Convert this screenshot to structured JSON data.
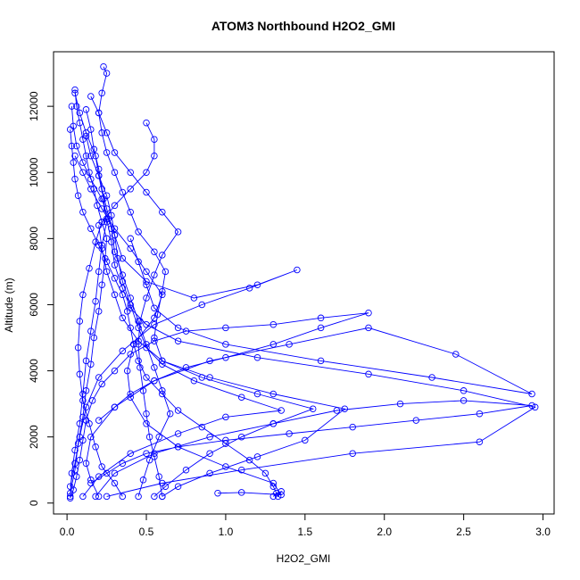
{
  "chart_data": {
    "type": "scatter",
    "title": "ATOM3 Northbound H2O2_GMI",
    "xlabel": "H2O2_GMI",
    "ylabel": "Altitude (m)",
    "xlim": [
      -0.085,
      3.07
    ],
    "ylim": [
      -330,
      13650
    ],
    "x_ticks": [
      0.0,
      0.5,
      1.0,
      1.5,
      2.0,
      2.5,
      3.0
    ],
    "x_tick_labels": [
      "0.0",
      "0.5",
      "1.0",
      "1.5",
      "2.0",
      "2.5",
      "3.0"
    ],
    "y_ticks": [
      0,
      2000,
      4000,
      6000,
      8000,
      10000,
      12000
    ],
    "y_tick_labels": [
      "0",
      "2000",
      "4000",
      "6000",
      "8000",
      "10000",
      "12000"
    ],
    "grid": false,
    "legend": "none",
    "marker": "open-circle",
    "connect_points": true,
    "color": "#0000ff",
    "series": [
      {
        "values": [
          [
            0.02,
            200
          ],
          [
            0.03,
            900
          ],
          [
            0.05,
            1600
          ],
          [
            0.08,
            2400
          ],
          [
            0.1,
            3300
          ],
          [
            0.12,
            4300
          ],
          [
            0.15,
            5200
          ],
          [
            0.18,
            6100
          ],
          [
            0.2,
            7000
          ],
          [
            0.22,
            7800
          ],
          [
            0.25,
            8500
          ],
          [
            0.23,
            9200
          ],
          [
            0.2,
            9900
          ],
          [
            0.18,
            10500
          ],
          [
            0.12,
            11200
          ],
          [
            0.08,
            11800
          ],
          [
            0.05,
            12400
          ]
        ]
      },
      {
        "values": [
          [
            0.45,
            200
          ],
          [
            0.48,
            700
          ],
          [
            0.52,
            1300
          ],
          [
            0.58,
            2000
          ],
          [
            0.65,
            2700
          ],
          [
            0.6,
            3400
          ],
          [
            0.55,
            4100
          ],
          [
            0.5,
            4800
          ],
          [
            0.45,
            5500
          ],
          [
            0.4,
            6200
          ],
          [
            0.35,
            6900
          ],
          [
            0.3,
            7600
          ],
          [
            0.28,
            8300
          ],
          [
            0.25,
            8900
          ],
          [
            0.22,
            9500
          ],
          [
            0.2,
            10100
          ],
          [
            0.17,
            10700
          ],
          [
            0.15,
            11300
          ],
          [
            0.12,
            11900
          ]
        ]
      },
      {
        "values": [
          [
            0.6,
            200
          ],
          [
            0.7,
            500
          ],
          [
            0.9,
            900
          ],
          [
            1.2,
            1400
          ],
          [
            1.5,
            1900
          ],
          [
            1.75,
            2850
          ],
          [
            1.3,
            3300
          ],
          [
            0.9,
            3800
          ],
          [
            0.6,
            4300
          ],
          [
            0.45,
            4900
          ],
          [
            0.35,
            5600
          ],
          [
            0.3,
            6300
          ],
          [
            0.25,
            7000
          ],
          [
            0.22,
            7700
          ],
          [
            0.2,
            8400
          ]
        ]
      },
      {
        "values": [
          [
            0.25,
            200
          ],
          [
            0.6,
            600
          ],
          [
            1.1,
            1000
          ],
          [
            1.8,
            1500
          ],
          [
            2.6,
            1850
          ],
          [
            2.95,
            2900
          ],
          [
            2.5,
            3400
          ],
          [
            1.9,
            3900
          ],
          [
            1.2,
            4400
          ],
          [
            0.7,
            4900
          ],
          [
            0.5,
            5400
          ],
          [
            0.4,
            5900
          ],
          [
            0.35,
            6500
          ],
          [
            0.3,
            7200
          ],
          [
            0.28,
            7900
          ],
          [
            0.25,
            8600
          ]
        ]
      },
      {
        "values": [
          [
            0.95,
            300
          ],
          [
            1.1,
            320
          ],
          [
            1.35,
            250
          ],
          [
            1.3,
            600
          ],
          [
            1.0,
            1100
          ],
          [
            0.7,
            1700
          ],
          [
            0.5,
            2400
          ],
          [
            0.4,
            3200
          ],
          [
            0.38,
            4000
          ],
          [
            0.42,
            4800
          ],
          [
            0.55,
            5600
          ],
          [
            0.6,
            6300
          ],
          [
            0.5,
            7000
          ],
          [
            0.4,
            7700
          ],
          [
            0.3,
            8300
          ],
          [
            0.22,
            8900
          ],
          [
            0.15,
            9500
          ],
          [
            0.1,
            10000
          ],
          [
            0.05,
            10500
          ]
        ]
      },
      {
        "values": [
          [
            0.2,
            200
          ],
          [
            0.15,
            700
          ],
          [
            0.12,
            1200
          ],
          [
            0.15,
            2000
          ],
          [
            0.3,
            2900
          ],
          [
            0.55,
            3700
          ],
          [
            0.9,
            4300
          ],
          [
            1.4,
            4800
          ],
          [
            1.9,
            5300
          ],
          [
            2.45,
            4500
          ],
          [
            2.93,
            3300
          ],
          [
            2.3,
            3800
          ],
          [
            1.6,
            4300
          ],
          [
            1.0,
            4800
          ],
          [
            0.7,
            5300
          ],
          [
            0.55,
            5900
          ],
          [
            0.5,
            6600
          ],
          [
            0.45,
            7300
          ],
          [
            0.4,
            8000
          ]
        ]
      },
      {
        "values": [
          [
            0.55,
            200
          ],
          [
            0.62,
            500
          ],
          [
            0.75,
            1000
          ],
          [
            0.9,
            1500
          ],
          [
            1.1,
            2000
          ],
          [
            1.3,
            2400
          ],
          [
            1.55,
            2850
          ],
          [
            1.2,
            3300
          ],
          [
            0.85,
            3800
          ],
          [
            0.6,
            4300
          ],
          [
            0.55,
            5000
          ],
          [
            0.57,
            5700
          ],
          [
            0.6,
            6400
          ],
          [
            0.62,
            7000
          ],
          [
            0.55,
            7600
          ],
          [
            0.45,
            8200
          ],
          [
            0.4,
            8800
          ],
          [
            0.35,
            9400
          ],
          [
            0.3,
            10000
          ],
          [
            0.25,
            10600
          ],
          [
            0.22,
            11200
          ],
          [
            0.2,
            11800
          ],
          [
            0.22,
            12400
          ],
          [
            0.25,
            13000
          ],
          [
            0.23,
            13200
          ]
        ]
      },
      {
        "values": [
          [
            0.02,
            500
          ],
          [
            0.05,
            1200
          ],
          [
            0.08,
            2000
          ],
          [
            0.12,
            2900
          ],
          [
            0.2,
            3800
          ],
          [
            0.35,
            4600
          ],
          [
            0.55,
            5400
          ],
          [
            0.85,
            6000
          ],
          [
            1.15,
            6500
          ],
          [
            1.45,
            7050
          ],
          [
            1.2,
            6600
          ],
          [
            0.8,
            6200
          ],
          [
            0.5,
            6700
          ],
          [
            0.35,
            7400
          ],
          [
            0.3,
            8100
          ],
          [
            0.26,
            8600
          ],
          [
            0.22,
            9200
          ],
          [
            0.15,
            9800
          ],
          [
            0.1,
            10300
          ],
          [
            0.06,
            10800
          ],
          [
            0.04,
            11400
          ],
          [
            0.03,
            12000
          ]
        ]
      },
      {
        "values": [
          [
            0.1,
            200
          ],
          [
            0.2,
            800
          ],
          [
            0.4,
            1500
          ],
          [
            0.7,
            2100
          ],
          [
            1.0,
            2600
          ],
          [
            1.35,
            2800
          ],
          [
            1.1,
            3200
          ],
          [
            0.8,
            3700
          ],
          [
            0.6,
            4200
          ],
          [
            0.5,
            4700
          ],
          [
            0.45,
            5300
          ],
          [
            0.4,
            6000
          ],
          [
            0.35,
            6700
          ],
          [
            0.32,
            7400
          ],
          [
            0.3,
            8100
          ],
          [
            0.28,
            8700
          ],
          [
            0.25,
            9300
          ],
          [
            0.2,
            9900
          ],
          [
            0.15,
            10500
          ],
          [
            0.12,
            11100
          ]
        ]
      },
      {
        "values": [
          [
            0.35,
            200
          ],
          [
            0.3,
            600
          ],
          [
            0.22,
            1100
          ],
          [
            0.18,
            1700
          ],
          [
            0.14,
            2400
          ],
          [
            0.1,
            3100
          ],
          [
            0.08,
            3900
          ],
          [
            0.07,
            4700
          ],
          [
            0.08,
            5500
          ],
          [
            0.1,
            6300
          ],
          [
            0.14,
            7100
          ],
          [
            0.18,
            7900
          ],
          [
            0.22,
            8500
          ],
          [
            0.3,
            9000
          ],
          [
            0.4,
            9500
          ],
          [
            0.5,
            10000
          ],
          [
            0.55,
            10500
          ],
          [
            0.55,
            11000
          ],
          [
            0.5,
            11500
          ]
        ]
      },
      {
        "values": [
          [
            0.6,
            200
          ],
          [
            0.58,
            800
          ],
          [
            0.55,
            1400
          ],
          [
            0.52,
            2000
          ],
          [
            0.5,
            2700
          ],
          [
            0.48,
            3400
          ],
          [
            0.46,
            4100
          ],
          [
            0.45,
            4800
          ],
          [
            0.46,
            5500
          ],
          [
            0.5,
            6200
          ],
          [
            0.55,
            6900
          ],
          [
            0.6,
            7500
          ],
          [
            0.7,
            8200
          ],
          [
            0.6,
            8800
          ],
          [
            0.5,
            9400
          ],
          [
            0.4,
            10000
          ],
          [
            0.3,
            10600
          ],
          [
            0.25,
            11200
          ],
          [
            0.2,
            11800
          ],
          [
            0.15,
            12300
          ]
        ]
      },
      {
        "values": [
          [
            0.02,
            150
          ],
          [
            0.04,
            400
          ],
          [
            0.06,
            800
          ],
          [
            0.08,
            1300
          ],
          [
            0.1,
            1900
          ],
          [
            0.12,
            2500
          ],
          [
            0.16,
            3100
          ],
          [
            0.22,
            3600
          ],
          [
            0.3,
            4000
          ],
          [
            0.4,
            4500
          ],
          [
            0.55,
            4900
          ],
          [
            0.75,
            5200
          ],
          [
            1.0,
            5300
          ],
          [
            1.3,
            5400
          ],
          [
            1.6,
            5600
          ],
          [
            1.9,
            5750
          ],
          [
            1.6,
            5300
          ],
          [
            1.3,
            4800
          ],
          [
            1.0,
            4400
          ],
          [
            0.75,
            4100
          ],
          [
            0.55,
            3700
          ],
          [
            0.4,
            3300
          ],
          [
            0.3,
            2900
          ],
          [
            0.2,
            2500
          ]
        ]
      },
      {
        "values": [
          [
            1.3,
            200
          ],
          [
            1.32,
            300
          ],
          [
            1.35,
            350
          ],
          [
            1.33,
            200
          ],
          [
            1.3,
            500
          ],
          [
            1.25,
            900
          ],
          [
            1.15,
            1300
          ],
          [
            1.0,
            1800
          ],
          [
            0.85,
            2300
          ],
          [
            0.7,
            2800
          ],
          [
            0.6,
            3300
          ],
          [
            0.5,
            3800
          ],
          [
            0.45,
            4300
          ],
          [
            0.42,
            4800
          ],
          [
            0.4,
            5300
          ],
          [
            0.38,
            5800
          ],
          [
            0.35,
            6300
          ],
          [
            0.3,
            6800
          ],
          [
            0.25,
            7300
          ],
          [
            0.2,
            7800
          ],
          [
            0.15,
            8300
          ],
          [
            0.1,
            8800
          ],
          [
            0.07,
            9300
          ],
          [
            0.05,
            9800
          ],
          [
            0.04,
            10300
          ],
          [
            0.03,
            10800
          ],
          [
            0.02,
            11300
          ]
        ]
      },
      {
        "values": [
          [
            0.18,
            200
          ],
          [
            0.3,
            900
          ],
          [
            0.55,
            1500
          ],
          [
            0.9,
            2000
          ],
          [
            1.3,
            2400
          ],
          [
            1.7,
            2800
          ],
          [
            2.1,
            3000
          ],
          [
            2.5,
            3100
          ],
          [
            2.93,
            2950
          ],
          [
            2.6,
            2700
          ],
          [
            2.2,
            2500
          ],
          [
            1.8,
            2300
          ],
          [
            1.4,
            2100
          ],
          [
            1.0,
            1900
          ],
          [
            0.7,
            1700
          ],
          [
            0.5,
            1500
          ],
          [
            0.35,
            1200
          ],
          [
            0.25,
            900
          ],
          [
            0.15,
            600
          ]
        ]
      },
      {
        "values": [
          [
            0.02,
            300
          ],
          [
            0.05,
            1000
          ],
          [
            0.07,
            1800
          ],
          [
            0.1,
            2600
          ],
          [
            0.12,
            3400
          ],
          [
            0.15,
            4200
          ],
          [
            0.17,
            5000
          ],
          [
            0.2,
            5800
          ],
          [
            0.22,
            6600
          ],
          [
            0.24,
            7400
          ],
          [
            0.25,
            8000
          ],
          [
            0.22,
            8500
          ],
          [
            0.19,
            9000
          ],
          [
            0.17,
            9500
          ],
          [
            0.14,
            10000
          ],
          [
            0.12,
            10500
          ],
          [
            0.1,
            11000
          ],
          [
            0.08,
            11500
          ],
          [
            0.06,
            12000
          ],
          [
            0.05,
            12500
          ]
        ]
      }
    ]
  }
}
